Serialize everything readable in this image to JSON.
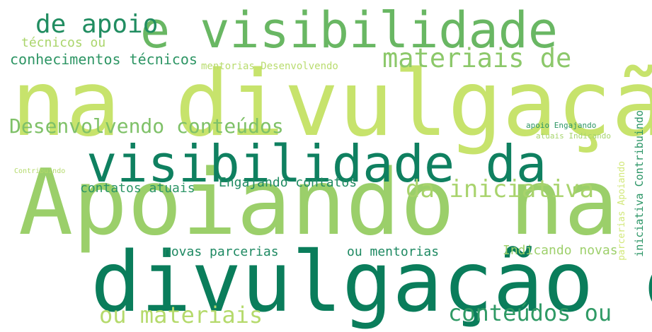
{
  "words": [
    {
      "text": "na divulgação",
      "color": "#c7e36c"
    },
    {
      "text": "Apoiando na",
      "color": "#9bcf6a"
    },
    {
      "text": "divulgação e",
      "color": "#0a7d5b"
    },
    {
      "text": "e visibilidade",
      "color": "#69b763"
    },
    {
      "text": "visibilidade da",
      "color": "#0f8060"
    },
    {
      "text": "de apoio",
      "color": "#218d61"
    },
    {
      "text": "materiais de",
      "color": "#8cc86a"
    },
    {
      "text": "Desenvolvendo conteúdos",
      "color": "#7fc168"
    },
    {
      "text": "da iniciativa",
      "color": "#a8d36c"
    },
    {
      "text": "ou materiais",
      "color": "#b5da6c"
    },
    {
      "text": "conteúdos ou",
      "color": "#2f9a65"
    },
    {
      "text": "técnicos ou",
      "color": "#aad56b"
    },
    {
      "text": "conhecimentos técnicos",
      "color": "#2d9564"
    },
    {
      "text": "mentorias Desenvolvendo",
      "color": "#b9dc6f"
    },
    {
      "text": "contatos atuais",
      "color": "#2b9566"
    },
    {
      "text": "Engajando contatos",
      "color": "#1e8a61"
    },
    {
      "text": "novas parcerias",
      "color": "#1e8962"
    },
    {
      "text": "ou mentorias",
      "color": "#1e8962"
    },
    {
      "text": "Indicando novas",
      "color": "#9ed06c"
    },
    {
      "text": "apoio Engajando",
      "color": "#2c9564"
    },
    {
      "text": "atuais Indicando",
      "color": "#a6d46c"
    },
    {
      "text": "Contribuindo",
      "color": "#b4da6c"
    },
    {
      "text": "iniciativa Contribuindo",
      "color": "#2b9566"
    },
    {
      "text": "parcerias Apoiando",
      "color": "#d2e87a"
    }
  ]
}
